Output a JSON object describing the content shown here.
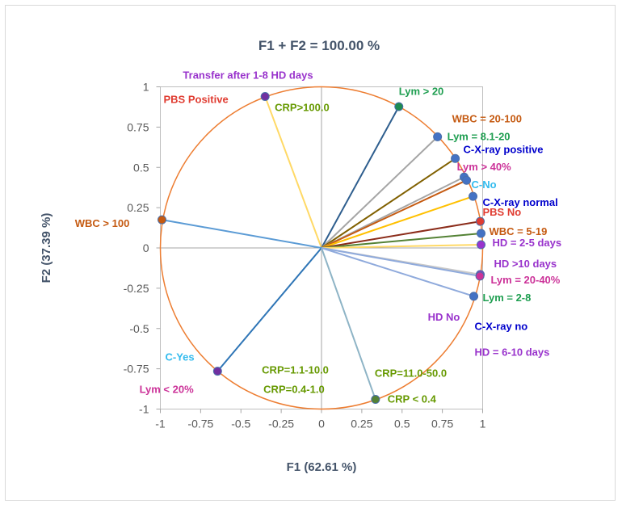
{
  "chart_data": {
    "type": "scatter",
    "title": "F1 + F2 = 100.00 %",
    "xlabel": "F1 (62.61 %)",
    "ylabel": "F2 (37.39 %)",
    "xlim": [
      -1,
      1
    ],
    "ylim": [
      -1,
      1
    ],
    "xticks": [
      "-1",
      "-0.75",
      "-0.5",
      "-0.25",
      "0",
      "0.25",
      "0.5",
      "0.75",
      "1"
    ],
    "yticks": [
      "1",
      "0.75",
      "0.5",
      "0.25",
      "0",
      "-0.25",
      "-0.5",
      "-0.75",
      "-1"
    ],
    "circle_color": "#ed7d31",
    "points": [
      {
        "x": -0.35,
        "y": 0.94,
        "color": "#7030a0",
        "line": "#ffd966"
      },
      {
        "x": 0.48,
        "y": 0.877,
        "color": "#1e8c50",
        "line": "#2e5e8e"
      },
      {
        "x": 0.72,
        "y": 0.69,
        "color": "#4472c4",
        "line": "#a5a5a5"
      },
      {
        "x": 0.83,
        "y": 0.555,
        "color": "#4472c4",
        "line": "#806000"
      },
      {
        "x": 0.885,
        "y": 0.44,
        "color": "#4472c4",
        "line": "#a5a5a5"
      },
      {
        "x": 0.9,
        "y": 0.42,
        "color": "#4472c4",
        "line": "#c55a11"
      },
      {
        "x": 0.94,
        "y": 0.32,
        "color": "#4472c4",
        "line": "#ffc000"
      },
      {
        "x": 0.985,
        "y": 0.165,
        "color": "#e03c31",
        "line": "#8b2c1a"
      },
      {
        "x": 0.99,
        "y": 0.09,
        "color": "#4472c4",
        "line": "#548235"
      },
      {
        "x": 0.99,
        "y": 0.02,
        "color": "#9933cc",
        "line": "#ffd966"
      },
      {
        "x": 0.985,
        "y": -0.165,
        "color": "#9933cc",
        "line": "#c9c9c9"
      },
      {
        "x": 0.983,
        "y": -0.175,
        "color": "#cc3399",
        "line": "#8faadc"
      },
      {
        "x": 0.945,
        "y": -0.3,
        "color": "#4472c4",
        "line": "#8faadc"
      },
      {
        "x": -0.99,
        "y": 0.175,
        "color": "#c55a11",
        "line": "#5b9bd5"
      },
      {
        "x": -0.645,
        "y": -0.765,
        "color": "#7030a0",
        "line": "#2e75b6"
      },
      {
        "x": 0.335,
        "y": -0.94,
        "color": "#548235",
        "line": "#8eb4c6"
      }
    ],
    "labels": [
      {
        "text": "Transfer after 1-8 HD days",
        "color": "#9933cc",
        "x": -0.86,
        "y": 1.05
      },
      {
        "text": "PBS Positive",
        "color": "#e03c31",
        "x": -0.98,
        "y": 0.9
      },
      {
        "text": "CRP>100.0",
        "color": "#669900",
        "x": -0.29,
        "y": 0.85
      },
      {
        "text": "Lym > 20",
        "color": "#1e9e50",
        "x": 0.48,
        "y": 0.95
      },
      {
        "text": "WBC = 20-100",
        "color": "#c55a11",
        "x": 0.81,
        "y": 0.78
      },
      {
        "text": "Lym = 8.1-20",
        "color": "#1e9e50",
        "x": 0.78,
        "y": 0.67
      },
      {
        "text": "C-X-ray positive",
        "color": "#0000cc",
        "x": 0.88,
        "y": 0.59
      },
      {
        "text": "Lym > 40%",
        "color": "#cc3399",
        "x": 0.84,
        "y": 0.48
      },
      {
        "text": "C-No",
        "color": "#33bbee",
        "x": 0.93,
        "y": 0.37
      },
      {
        "text": "C-X-ray normal",
        "color": "#0000cc",
        "x": 1.0,
        "y": 0.26
      },
      {
        "text": "PBS No",
        "color": "#e03c31",
        "x": 1.0,
        "y": 0.2
      },
      {
        "text": "WBC = 5-19",
        "color": "#c55a11",
        "x": 1.04,
        "y": 0.08
      },
      {
        "text": "HD = 2-5 days",
        "color": "#9933cc",
        "x": 1.06,
        "y": 0.01
      },
      {
        "text": "HD >10 days",
        "color": "#9933cc",
        "x": 1.07,
        "y": -0.12
      },
      {
        "text": "Lym = 20-40%",
        "color": "#cc3399",
        "x": 1.05,
        "y": -0.22
      },
      {
        "text": "HD No",
        "color": "#9933cc",
        "x": 0.66,
        "y": -0.45
      },
      {
        "text": "Lym = 2-8",
        "color": "#1e9e50",
        "x": 1.0,
        "y": -0.33
      },
      {
        "text": "C-X-ray no",
        "color": "#0000cc",
        "x": 0.95,
        "y": -0.51
      },
      {
        "text": "HD = 6-10 days",
        "color": "#9933cc",
        "x": 0.95,
        "y": -0.67
      },
      {
        "text": "WBC > 100",
        "color": "#c55a11",
        "x": -1.53,
        "y": 0.13
      },
      {
        "text": "C-Yes",
        "color": "#33bbee",
        "x": -0.97,
        "y": -0.7
      },
      {
        "text": "Lym < 20%",
        "color": "#cc3399",
        "x": -1.13,
        "y": -0.9
      },
      {
        "text": "CRP=1.1-10.0",
        "color": "#669900",
        "x": -0.37,
        "y": -0.78
      },
      {
        "text": "CRP=0.4-1.0",
        "color": "#669900",
        "x": -0.36,
        "y": -0.9
      },
      {
        "text": "CRP=11.0-50.0",
        "color": "#669900",
        "x": 0.33,
        "y": -0.8
      },
      {
        "text": "CRP < 0.4",
        "color": "#669900",
        "x": 0.41,
        "y": -0.96
      }
    ]
  }
}
